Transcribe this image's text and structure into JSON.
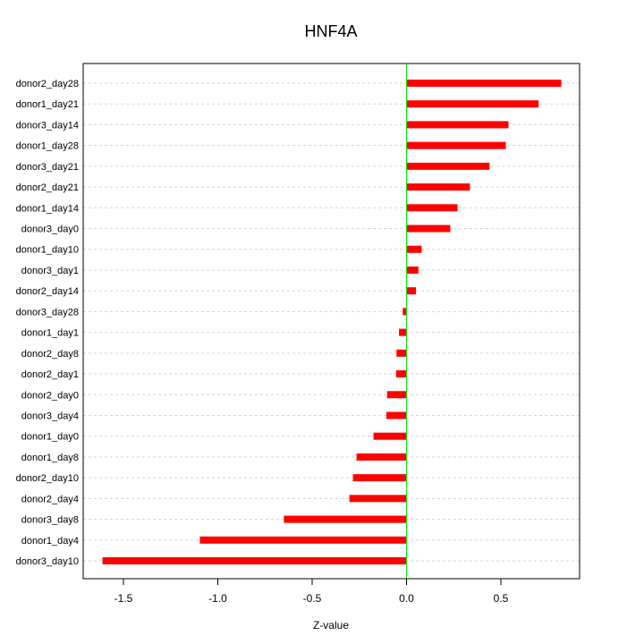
{
  "chart_data": {
    "type": "bar",
    "orientation": "horizontal",
    "title": "HNF4A",
    "xlabel": "Z-value",
    "ylabel": "",
    "xlim": [
      -1.72,
      0.92
    ],
    "xticks": [
      -1.5,
      -1.0,
      -0.5,
      0.0,
      0.5
    ],
    "xtick_labels": [
      "-1.5",
      "-1.0",
      "-0.5",
      "0.0",
      "0.5"
    ],
    "grid": "horizontal dotted",
    "reference_line": 0,
    "colors": {
      "bar": "#ff0000",
      "reference": "#00ee00",
      "grid": "#d3d3d3"
    },
    "categories": [
      "donor2_day28",
      "donor1_day21",
      "donor3_day14",
      "donor1_day28",
      "donor3_day21",
      "donor2_day21",
      "donor1_day14",
      "donor3_day0",
      "donor1_day10",
      "donor3_day1",
      "donor2_day14",
      "donor3_day28",
      "donor1_day1",
      "donor2_day8",
      "donor2_day1",
      "donor2_day0",
      "donor3_day4",
      "donor1_day0",
      "donor1_day8",
      "donor2_day10",
      "donor2_day4",
      "donor3_day8",
      "donor1_day4",
      "donor3_day10"
    ],
    "values": [
      0.82,
      0.7,
      0.54,
      0.526,
      0.44,
      0.336,
      0.27,
      0.232,
      0.08,
      0.063,
      0.05,
      -0.02,
      -0.04,
      -0.053,
      -0.055,
      -0.103,
      -0.107,
      -0.175,
      -0.265,
      -0.284,
      -0.303,
      -0.65,
      -1.095,
      -1.611
    ]
  }
}
